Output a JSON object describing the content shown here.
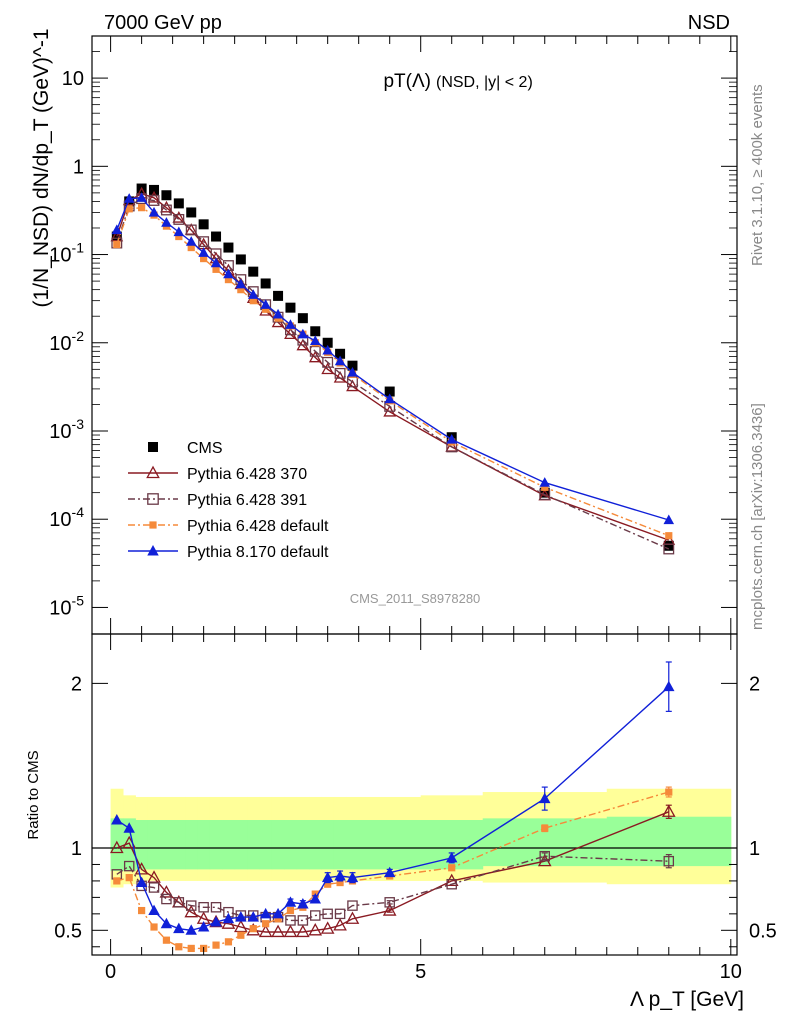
{
  "header": {
    "energy_label": "7000 GeV pp",
    "process_label": "NSD",
    "side_label_top": "Rivet 3.1.10, ≥ 400k events",
    "side_label_bottom": "mcplots.cern.ch [arXiv:1306.3436]",
    "analysis_id": "CMS_2011_S8978280"
  },
  "chart_data": [
    {
      "type": "line",
      "panel": "main",
      "title_main": "pT(Λ)",
      "title_sub": "(NSD, |y| < 2)",
      "xlabel": "Λ p_T [GeV]",
      "ylabel": "(1/N_NSD) dN/dp_T (GeV)^-1",
      "xlim": [
        -0.3,
        10.1
      ],
      "ylim": [
        5e-06,
        30
      ],
      "yscale": "log",
      "ytick_labels": [
        "10^-5",
        "10^-4",
        "10^-3",
        "10^-2",
        "10^-1",
        "1",
        "10"
      ],
      "legend_position": "bottom-left",
      "series": [
        {
          "name": "CMS",
          "style": "black-square",
          "color": "#000000",
          "x": [
            0.1,
            0.3,
            0.5,
            0.7,
            0.9,
            1.1,
            1.3,
            1.5,
            1.7,
            1.9,
            2.1,
            2.3,
            2.5,
            2.7,
            2.9,
            3.1,
            3.3,
            3.5,
            3.7,
            3.9,
            4.5,
            5.5,
            7.0,
            9.0
          ],
          "y": [
            0.16,
            0.4,
            0.56,
            0.54,
            0.47,
            0.38,
            0.3,
            0.22,
            0.16,
            0.12,
            0.088,
            0.064,
            0.047,
            0.034,
            0.025,
            0.019,
            0.0135,
            0.01,
            0.0075,
            0.0055,
            0.0028,
            0.00085,
            0.0002,
            5e-05
          ]
        },
        {
          "name": "Pythia 6.428 370",
          "style": "open-triangle-solid",
          "color": "#8a1a22",
          "x": [
            0.1,
            0.3,
            0.5,
            0.7,
            0.9,
            1.1,
            1.3,
            1.5,
            1.7,
            1.9,
            2.1,
            2.3,
            2.5,
            2.7,
            2.9,
            3.1,
            3.3,
            3.5,
            3.7,
            3.9,
            4.5,
            5.5,
            7.0,
            9.0
          ],
          "y": [
            0.16,
            0.41,
            0.49,
            0.44,
            0.34,
            0.26,
            0.19,
            0.13,
            0.09,
            0.066,
            0.046,
            0.032,
            0.023,
            0.017,
            0.0125,
            0.0093,
            0.0068,
            0.005,
            0.004,
            0.0032,
            0.00165,
            0.00066,
            0.000185,
            5.8e-05
          ]
        },
        {
          "name": "Pythia 6.428 391",
          "style": "open-square-dashdot",
          "color": "#6a3a48",
          "x": [
            0.1,
            0.3,
            0.5,
            0.7,
            0.9,
            1.1,
            1.3,
            1.5,
            1.7,
            1.9,
            2.1,
            2.3,
            2.5,
            2.7,
            2.9,
            3.1,
            3.3,
            3.5,
            3.7,
            3.9,
            4.5,
            5.5,
            7.0,
            9.0
          ],
          "y": [
            0.135,
            0.355,
            0.43,
            0.41,
            0.32,
            0.25,
            0.19,
            0.14,
            0.102,
            0.075,
            0.052,
            0.038,
            0.027,
            0.0195,
            0.014,
            0.0107,
            0.008,
            0.006,
            0.0045,
            0.0036,
            0.0019,
            0.00066,
            0.00019,
            4.6e-05
          ]
        },
        {
          "name": "Pythia 6.428 default",
          "style": "filled-square-dashdot",
          "color": "#f58a3a",
          "x": [
            0.1,
            0.3,
            0.5,
            0.7,
            0.9,
            1.1,
            1.3,
            1.5,
            1.7,
            1.9,
            2.1,
            2.3,
            2.5,
            2.7,
            2.9,
            3.1,
            3.3,
            3.5,
            3.7,
            3.9,
            4.5,
            5.5,
            7.0,
            9.0
          ],
          "y": [
            0.13,
            0.33,
            0.34,
            0.28,
            0.21,
            0.16,
            0.12,
            0.09,
            0.068,
            0.052,
            0.04,
            0.03,
            0.024,
            0.019,
            0.0155,
            0.0125,
            0.01,
            0.0078,
            0.0059,
            0.0044,
            0.0022,
            0.00075,
            0.00023,
            6.5e-05
          ]
        },
        {
          "name": "Pythia 8.170 default",
          "style": "filled-triangle-solid",
          "color": "#1020d8",
          "x": [
            0.1,
            0.3,
            0.5,
            0.7,
            0.9,
            1.1,
            1.3,
            1.5,
            1.7,
            1.9,
            2.1,
            2.3,
            2.5,
            2.7,
            2.9,
            3.1,
            3.3,
            3.5,
            3.7,
            3.9,
            4.5,
            5.5,
            7.0,
            9.0
          ],
          "y": [
            0.19,
            0.43,
            0.44,
            0.3,
            0.23,
            0.18,
            0.14,
            0.105,
            0.08,
            0.06,
            0.046,
            0.035,
            0.027,
            0.021,
            0.016,
            0.0125,
            0.0105,
            0.0082,
            0.0062,
            0.0046,
            0.0023,
            0.0008,
            0.00026,
            9.8e-05
          ]
        }
      ]
    },
    {
      "type": "line",
      "panel": "ratio",
      "ylabel": "Ratio to CMS",
      "xlim": [
        -0.3,
        10.1
      ],
      "ylim": [
        0.35,
        2.3
      ],
      "ytick_labels": [
        "0.5",
        "1",
        "2"
      ],
      "xtick_labels": [
        "0",
        "5",
        "10"
      ],
      "band_inner_color": "#99ff99",
      "band_outer_color": "#ffff99",
      "band_edges": [
        0.0,
        0.2,
        0.4,
        0.6,
        0.8,
        1.0,
        1.2,
        1.4,
        1.6,
        1.8,
        2.0,
        2.2,
        2.4,
        2.6,
        2.8,
        3.0,
        3.2,
        3.4,
        3.6,
        3.8,
        4.0,
        5.0,
        6.0,
        8.0,
        10.0
      ],
      "band_inner": [
        [
          0.86,
          1.18
        ],
        [
          0.86,
          1.18
        ],
        [
          0.87,
          1.17
        ],
        [
          0.87,
          1.17
        ],
        [
          0.87,
          1.17
        ],
        [
          0.87,
          1.17
        ],
        [
          0.87,
          1.17
        ],
        [
          0.87,
          1.17
        ],
        [
          0.87,
          1.17
        ],
        [
          0.87,
          1.17
        ],
        [
          0.87,
          1.17
        ],
        [
          0.87,
          1.17
        ],
        [
          0.87,
          1.17
        ],
        [
          0.87,
          1.17
        ],
        [
          0.87,
          1.17
        ],
        [
          0.87,
          1.17
        ],
        [
          0.87,
          1.17
        ],
        [
          0.87,
          1.17
        ],
        [
          0.87,
          1.17
        ],
        [
          0.87,
          1.17
        ],
        [
          0.87,
          1.17
        ],
        [
          0.87,
          1.17
        ],
        [
          0.89,
          1.18
        ],
        [
          0.89,
          1.19
        ]
      ],
      "band_outer": [
        [
          0.76,
          1.36
        ],
        [
          0.78,
          1.32
        ],
        [
          0.8,
          1.31
        ],
        [
          0.8,
          1.31
        ],
        [
          0.8,
          1.31
        ],
        [
          0.8,
          1.31
        ],
        [
          0.8,
          1.31
        ],
        [
          0.8,
          1.31
        ],
        [
          0.8,
          1.31
        ],
        [
          0.8,
          1.31
        ],
        [
          0.8,
          1.31
        ],
        [
          0.8,
          1.31
        ],
        [
          0.8,
          1.31
        ],
        [
          0.8,
          1.31
        ],
        [
          0.8,
          1.31
        ],
        [
          0.8,
          1.31
        ],
        [
          0.8,
          1.31
        ],
        [
          0.8,
          1.31
        ],
        [
          0.8,
          1.31
        ],
        [
          0.8,
          1.31
        ],
        [
          0.8,
          1.31
        ],
        [
          0.8,
          1.32
        ],
        [
          0.79,
          1.34
        ],
        [
          0.78,
          1.36
        ]
      ],
      "series": [
        {
          "name": "Pythia 6.428 370",
          "x": [
            0.1,
            0.3,
            0.5,
            0.7,
            0.9,
            1.1,
            1.3,
            1.5,
            1.7,
            1.9,
            2.1,
            2.3,
            2.5,
            2.7,
            2.9,
            3.1,
            3.3,
            3.5,
            3.7,
            3.9,
            4.5,
            5.5,
            7.0,
            9.0
          ],
          "y": [
            1.0,
            1.03,
            0.87,
            0.82,
            0.73,
            0.67,
            0.61,
            0.57,
            0.55,
            0.54,
            0.52,
            0.5,
            0.49,
            0.49,
            0.49,
            0.49,
            0.5,
            0.51,
            0.53,
            0.57,
            0.62,
            0.8,
            0.92,
            1.22
          ],
          "err": [
            0,
            0,
            0,
            0,
            0,
            0,
            0,
            0,
            0,
            0,
            0,
            0,
            0,
            0,
            0,
            0,
            0,
            0,
            0,
            0,
            0.01,
            0,
            0,
            0.04
          ]
        },
        {
          "name": "Pythia 6.428 391",
          "x": [
            0.1,
            0.3,
            0.5,
            0.7,
            0.9,
            1.1,
            1.3,
            1.5,
            1.7,
            1.9,
            2.1,
            2.3,
            2.5,
            2.7,
            2.9,
            3.1,
            3.3,
            3.5,
            3.7,
            3.9,
            4.5,
            5.5,
            7.0,
            9.0
          ],
          "y": [
            0.84,
            0.89,
            0.77,
            0.76,
            0.69,
            0.67,
            0.65,
            0.64,
            0.64,
            0.61,
            0.59,
            0.59,
            0.58,
            0.58,
            0.56,
            0.56,
            0.59,
            0.6,
            0.6,
            0.65,
            0.67,
            0.78,
            0.95,
            0.92
          ],
          "err": [
            0,
            0,
            0,
            0,
            0,
            0,
            0,
            0,
            0,
            0,
            0,
            0,
            0,
            0,
            0,
            0,
            0,
            0,
            0,
            0,
            0.01,
            0,
            0.02,
            0.04
          ]
        },
        {
          "name": "Pythia 6.428 default",
          "x": [
            0.1,
            0.3,
            0.5,
            0.7,
            0.9,
            1.1,
            1.3,
            1.5,
            1.7,
            1.9,
            2.1,
            2.3,
            2.5,
            2.7,
            2.9,
            3.1,
            3.3,
            3.5,
            3.7,
            3.9,
            4.5,
            5.5,
            7.0,
            9.0
          ],
          "y": [
            0.8,
            0.82,
            0.62,
            0.52,
            0.44,
            0.4,
            0.39,
            0.39,
            0.41,
            0.43,
            0.47,
            0.51,
            0.54,
            0.57,
            0.62,
            0.64,
            0.72,
            0.78,
            0.79,
            0.8,
            0.83,
            0.88,
            1.12,
            1.34
          ],
          "err": [
            0,
            0,
            0,
            0,
            0,
            0,
            0,
            0,
            0,
            0,
            0,
            0,
            0,
            0,
            0,
            0,
            0,
            0,
            0,
            0,
            0,
            0,
            0.02,
            0.03
          ]
        },
        {
          "name": "Pythia 8.170 default",
          "x": [
            0.1,
            0.3,
            0.5,
            0.7,
            0.9,
            1.1,
            1.3,
            1.5,
            1.7,
            1.9,
            2.1,
            2.3,
            2.5,
            2.7,
            2.9,
            3.1,
            3.3,
            3.5,
            3.7,
            3.9,
            4.5,
            5.5,
            7.0,
            9.0
          ],
          "y": [
            1.17,
            1.12,
            0.79,
            0.62,
            0.54,
            0.51,
            0.5,
            0.52,
            0.55,
            0.57,
            0.58,
            0.58,
            0.6,
            0.6,
            0.67,
            0.66,
            0.69,
            0.82,
            0.83,
            0.82,
            0.85,
            0.94,
            1.3,
            1.98
          ],
          "err": [
            0,
            0,
            0,
            0,
            0,
            0,
            0,
            0,
            0,
            0,
            0,
            0,
            0,
            0,
            0.02,
            0.02,
            0.02,
            0.03,
            0.03,
            0.03,
            0.02,
            0.03,
            0.07,
            0.15
          ]
        }
      ]
    }
  ]
}
